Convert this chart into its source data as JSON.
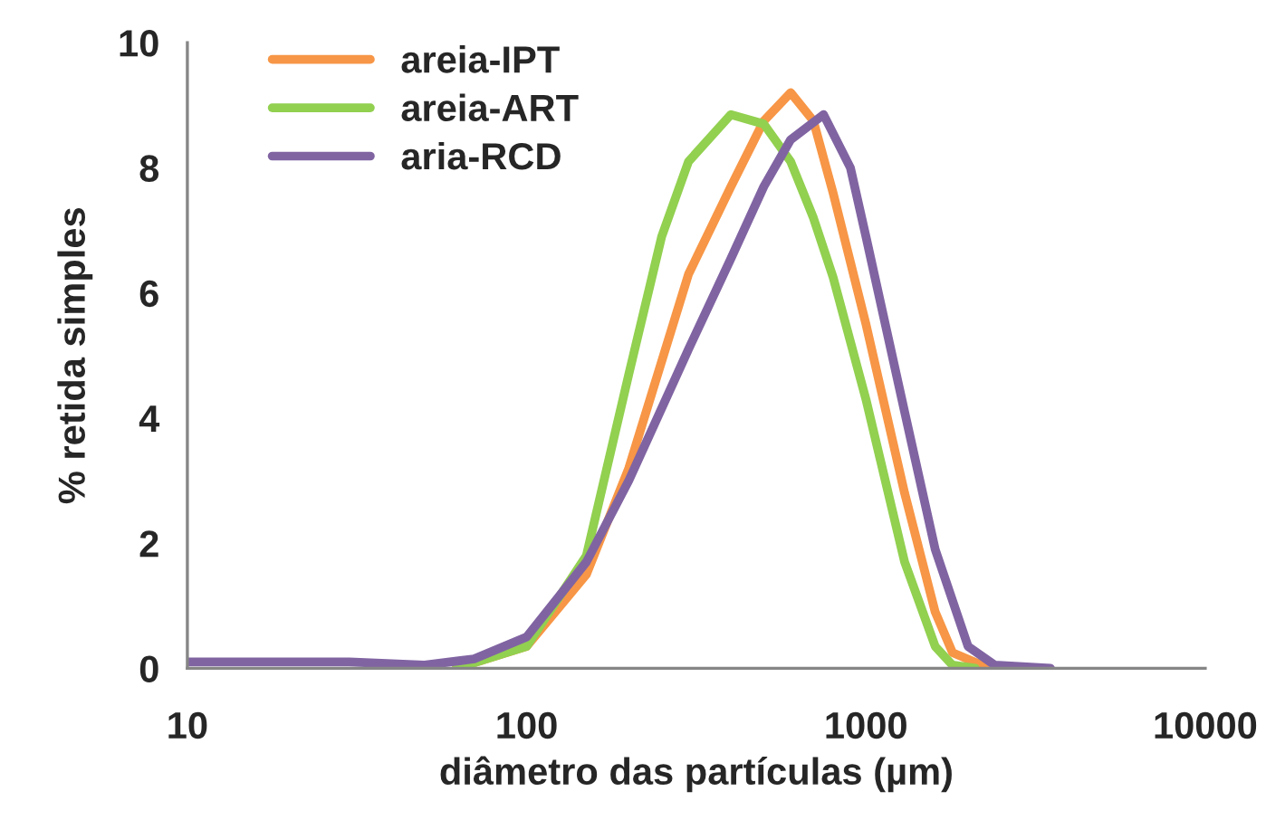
{
  "chart_data": {
    "type": "line",
    "xlabel": "diâmetro das partículas (µm)",
    "ylabel": "% retida simples",
    "log": "x",
    "xlim": [
      10,
      10000
    ],
    "xticks": [
      10,
      100,
      1000,
      10000
    ],
    "ylim": [
      0,
      10
    ],
    "yticks": [
      0,
      2,
      4,
      6,
      8,
      10
    ],
    "grid": false,
    "legend": "top left",
    "marker": "none",
    "line_style": "solid",
    "series": [
      {
        "name": "areia-IPT",
        "color": "#f79646",
        "x": [
          62,
          100,
          150,
          200,
          300,
          400,
          500,
          600,
          700,
          800,
          1000,
          1300,
          1600,
          1800,
          2200,
          2500
        ],
        "values": [
          0,
          0.35,
          1.5,
          3.2,
          6.3,
          7.7,
          8.75,
          9.2,
          8.75,
          7.6,
          5.5,
          2.8,
          0.9,
          0.25,
          0.05,
          0
        ]
      },
      {
        "name": "areia-ART",
        "color": "#92d050",
        "x": [
          62,
          100,
          150,
          200,
          250,
          300,
          400,
          500,
          600,
          700,
          800,
          1000,
          1300,
          1600,
          1800,
          2100
        ],
        "values": [
          0,
          0.35,
          1.8,
          4.7,
          6.9,
          8.1,
          8.85,
          8.7,
          8.1,
          7.2,
          6.25,
          4.3,
          1.7,
          0.35,
          0.05,
          0
        ]
      },
      {
        "name": "aria-RCD",
        "color": "#8064a2",
        "x": [
          10,
          20,
          30,
          50,
          70,
          100,
          150,
          200,
          300,
          400,
          500,
          600,
          750,
          900,
          1000,
          1300,
          1600,
          2000,
          2400,
          3500
        ],
        "values": [
          0.1,
          0.1,
          0.1,
          0.05,
          0.15,
          0.5,
          1.7,
          3.0,
          5.1,
          6.55,
          7.7,
          8.45,
          8.85,
          8.0,
          6.9,
          4.1,
          1.9,
          0.35,
          0.05,
          0
        ]
      }
    ]
  }
}
